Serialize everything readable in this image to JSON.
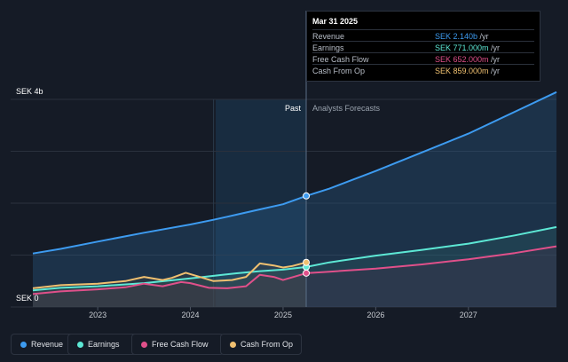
{
  "tooltip": {
    "date": "Mar 31 2025",
    "rows": [
      {
        "label": "Revenue",
        "value": "SEK 2.140b",
        "unit": " /yr",
        "color": "#3d9bf0"
      },
      {
        "label": "Earnings",
        "value": "SEK 771.000m",
        "unit": " /yr",
        "color": "#5de8d5"
      },
      {
        "label": "Free Cash Flow",
        "value": "SEK 652.000m",
        "unit": " /yr",
        "color": "#e0508a"
      },
      {
        "label": "Cash From Op",
        "value": "SEK 859.000m",
        "unit": " /yr",
        "color": "#f0c070"
      }
    ]
  },
  "legend": [
    {
      "label": "Revenue",
      "color": "#3d9bf0"
    },
    {
      "label": "Earnings",
      "color": "#5de8d5"
    },
    {
      "label": "Free Cash Flow",
      "color": "#e0508a"
    },
    {
      "label": "Cash From Op",
      "color": "#f0c070"
    }
  ],
  "chart_data": {
    "type": "line",
    "y_top_label": "SEK 4b",
    "y_bottom_label": "SEK 0",
    "ylim": [
      0,
      4.0
    ],
    "xlim": [
      2022.3,
      2027.95
    ],
    "x_ticks": [
      2023,
      2024,
      2025,
      2026,
      2027
    ],
    "past_label": "Past",
    "forecast_label": "Analysts Forecasts",
    "cutoff_x": 2025.25,
    "highlight_start_x": 2024.25,
    "series": [
      {
        "name": "Revenue",
        "color": "#3d9bf0",
        "points": [
          [
            2022.3,
            1.03
          ],
          [
            2022.6,
            1.12
          ],
          [
            2023.0,
            1.26
          ],
          [
            2023.5,
            1.43
          ],
          [
            2024.0,
            1.59
          ],
          [
            2024.25,
            1.68
          ],
          [
            2024.5,
            1.78
          ],
          [
            2024.75,
            1.88
          ],
          [
            2025.0,
            1.98
          ],
          [
            2025.25,
            2.14
          ],
          [
            2025.5,
            2.28
          ],
          [
            2026.0,
            2.62
          ],
          [
            2026.5,
            2.98
          ],
          [
            2027.0,
            3.34
          ],
          [
            2027.5,
            3.76
          ],
          [
            2027.95,
            4.14
          ]
        ]
      },
      {
        "name": "Earnings",
        "color": "#5de8d5",
        "points": [
          [
            2022.3,
            0.32
          ],
          [
            2022.6,
            0.37
          ],
          [
            2023.0,
            0.4
          ],
          [
            2023.5,
            0.46
          ],
          [
            2024.0,
            0.55
          ],
          [
            2024.25,
            0.6
          ],
          [
            2024.5,
            0.65
          ],
          [
            2024.75,
            0.69
          ],
          [
            2025.0,
            0.72
          ],
          [
            2025.25,
            0.771
          ],
          [
            2025.5,
            0.86
          ],
          [
            2026.0,
            0.99
          ],
          [
            2026.5,
            1.1
          ],
          [
            2027.0,
            1.22
          ],
          [
            2027.5,
            1.38
          ],
          [
            2027.95,
            1.54
          ]
        ]
      },
      {
        "name": "Free Cash Flow",
        "color": "#e0508a",
        "points": [
          [
            2022.3,
            0.25
          ],
          [
            2022.6,
            0.3
          ],
          [
            2023.0,
            0.34
          ],
          [
            2023.3,
            0.38
          ],
          [
            2023.5,
            0.45
          ],
          [
            2023.7,
            0.4
          ],
          [
            2023.9,
            0.48
          ],
          [
            2024.0,
            0.46
          ],
          [
            2024.2,
            0.37
          ],
          [
            2024.4,
            0.36
          ],
          [
            2024.6,
            0.4
          ],
          [
            2024.75,
            0.62
          ],
          [
            2024.9,
            0.58
          ],
          [
            2025.0,
            0.52
          ],
          [
            2025.25,
            0.652
          ],
          [
            2025.5,
            0.68
          ],
          [
            2026.0,
            0.74
          ],
          [
            2026.5,
            0.82
          ],
          [
            2027.0,
            0.92
          ],
          [
            2027.5,
            1.04
          ],
          [
            2027.95,
            1.17
          ]
        ]
      },
      {
        "name": "Cash From Op",
        "color": "#f0c070",
        "points": [
          [
            2022.3,
            0.36
          ],
          [
            2022.6,
            0.42
          ],
          [
            2023.0,
            0.45
          ],
          [
            2023.3,
            0.5
          ],
          [
            2023.5,
            0.58
          ],
          [
            2023.7,
            0.52
          ],
          [
            2023.8,
            0.56
          ],
          [
            2023.95,
            0.66
          ],
          [
            2024.1,
            0.58
          ],
          [
            2024.25,
            0.5
          ],
          [
            2024.45,
            0.52
          ],
          [
            2024.6,
            0.58
          ],
          [
            2024.75,
            0.84
          ],
          [
            2024.9,
            0.8
          ],
          [
            2025.0,
            0.76
          ],
          [
            2025.1,
            0.79
          ],
          [
            2025.25,
            0.859
          ]
        ]
      }
    ]
  }
}
